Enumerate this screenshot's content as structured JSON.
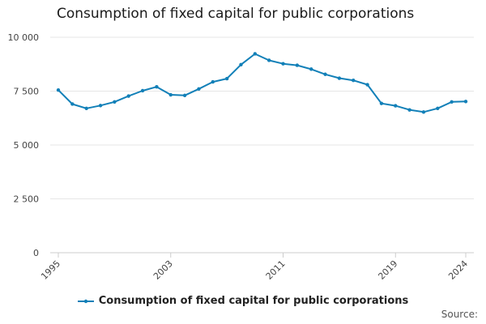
{
  "title": "Consumption of fixed capital for public corporations",
  "source_label": "Source:",
  "colors": {
    "series": "#1280b8",
    "grid": "#e6e6e6",
    "axis": "#cccccc",
    "tick_text": "#444444"
  },
  "chart_data": {
    "type": "line",
    "title": "Consumption of fixed capital for public corporations",
    "xlabel": "",
    "ylabel": "",
    "x": [
      1995,
      1996,
      1997,
      1998,
      1999,
      2000,
      2001,
      2002,
      2003,
      2004,
      2005,
      2006,
      2007,
      2008,
      2009,
      2010,
      2011,
      2012,
      2013,
      2014,
      2015,
      2016,
      2017,
      2018,
      2019,
      2020,
      2021,
      2022,
      2023,
      2024
    ],
    "x_ticks": [
      "1995",
      "2003",
      "2011",
      "2019",
      "2024"
    ],
    "ylim": [
      0,
      10000
    ],
    "y_ticks": [
      {
        "value": 0,
        "label": "0"
      },
      {
        "value": 2500,
        "label": "2 500"
      },
      {
        "value": 5000,
        "label": "5 000"
      },
      {
        "value": 7500,
        "label": "7 500"
      },
      {
        "value": 10000,
        "label": "10 000"
      }
    ],
    "grid": true,
    "legend_position": "bottom",
    "series": [
      {
        "name": "Consumption of fixed capital for public corporations",
        "values": [
          7550,
          6900,
          6700,
          6830,
          7000,
          7270,
          7520,
          7700,
          7330,
          7300,
          7600,
          7930,
          8080,
          8730,
          9230,
          8930,
          8770,
          8700,
          8520,
          8280,
          8100,
          8000,
          7800,
          6930,
          6820,
          6630,
          6530,
          6700,
          7000,
          7020
        ]
      }
    ]
  }
}
